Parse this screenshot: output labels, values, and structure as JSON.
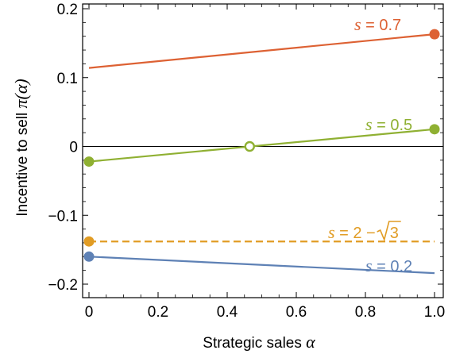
{
  "chart_data": {
    "type": "line",
    "xlabel_text": "Strategic sales ",
    "xlabel_symbol": "α",
    "ylabel_text": "Incentive to sell ",
    "ylabel_symbol": "π(α)",
    "xlim": [
      0,
      1
    ],
    "ylim": [
      -0.2,
      0.2
    ],
    "x_ticks": [
      "0",
      "0.2",
      "0.4",
      "0.6",
      "0.8",
      "1.0"
    ],
    "x_tick_values": [
      0,
      0.2,
      0.4,
      0.6,
      0.8,
      1.0
    ],
    "y_ticks": [
      "0.2",
      "0.1",
      "0",
      "−0.1",
      "−0.2"
    ],
    "y_tick_values": [
      0.2,
      0.1,
      0,
      -0.1,
      -0.2
    ],
    "zero_line": true,
    "series": [
      {
        "name": "s = 0.7",
        "label_var": "s",
        "label_rest": " = 0.7",
        "color": "#dd6133",
        "style": "solid",
        "x": [
          0,
          1
        ],
        "y": [
          0.114,
          0.163
        ],
        "markers": [
          {
            "x": 1,
            "y": 0.163,
            "filled": true
          }
        ]
      },
      {
        "name": "s = 0.5",
        "label_var": "s",
        "label_rest": " = 0.5",
        "color": "#8fb032",
        "style": "solid",
        "x": [
          0,
          1
        ],
        "y": [
          -0.022,
          0.025
        ],
        "markers": [
          {
            "x": 0,
            "y": -0.022,
            "filled": true
          },
          {
            "x": 0.465,
            "y": 0,
            "filled": false
          },
          {
            "x": 1,
            "y": 0.025,
            "filled": true
          }
        ]
      },
      {
        "name": "s = 2 − √3",
        "label_var": "s",
        "label_rest": " = 2 − ",
        "label_sqrt": "3",
        "color": "#e19c24",
        "style": "dashed",
        "x": [
          0,
          1
        ],
        "y": [
          -0.138,
          -0.138
        ],
        "markers": [
          {
            "x": 0,
            "y": -0.138,
            "filled": true
          }
        ]
      },
      {
        "name": "s = 0.2",
        "label_var": "s",
        "label_rest": " = 0.2",
        "color": "#5e81b5",
        "style": "solid",
        "x": [
          0,
          1
        ],
        "y": [
          -0.16,
          -0.184
        ],
        "markers": [
          {
            "x": 0,
            "y": -0.16,
            "filled": true
          }
        ]
      }
    ]
  }
}
